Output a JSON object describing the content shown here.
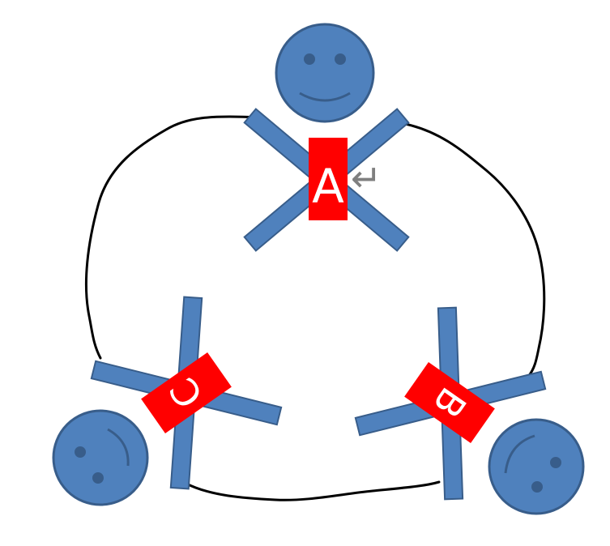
{
  "diagram": {
    "colors": {
      "figure_fill": "#4f81bd",
      "figure_stroke": "#385d8a",
      "label_fill": "#ff0000",
      "label_text": "#ffffff",
      "rope": "#000000",
      "return_mark": "#7f7f7f"
    },
    "figures": [
      {
        "id": "A",
        "label": "A"
      },
      {
        "id": "B",
        "label": "B"
      },
      {
        "id": "C",
        "label": "C"
      }
    ],
    "return_symbol": "↵"
  }
}
